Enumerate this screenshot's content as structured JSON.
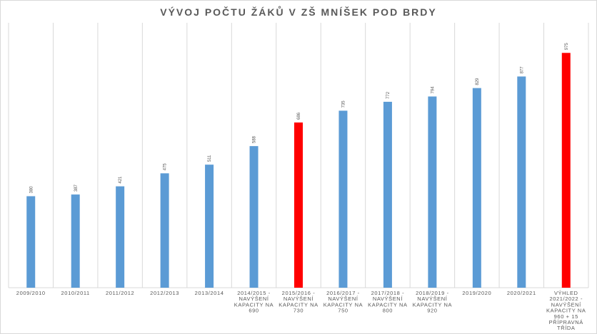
{
  "chart_data": {
    "type": "bar",
    "title": "VÝVOJ POČTU ŽÁKŮ V ZŠ MNÍŠEK POD BRDY",
    "xlabel": "",
    "ylabel": "",
    "ylim": [
      0,
      1100
    ],
    "grid": "vertical",
    "legend": "none",
    "categories": [
      [
        "2009/2010"
      ],
      [
        "2010/2011"
      ],
      [
        "2011/2012"
      ],
      [
        "2012/2013"
      ],
      [
        "2013/2014"
      ],
      [
        "2014/2015 -",
        "NAVÝŠENÍ",
        "KAPACITY NA",
        "690"
      ],
      [
        "2015/2016 -",
        "NAVÝŠENÍ",
        "KAPACITY NA",
        "730"
      ],
      [
        "2016/2017 -",
        "NAVÝŠENÍ",
        "KAPACITY NA",
        "750"
      ],
      [
        "2017/2018 -",
        "NAVÝŠENÍ",
        "KAPACITY NA",
        "800"
      ],
      [
        "2018/2019 -",
        "NAVÝŠENÍ",
        "KAPACITY NA",
        "920"
      ],
      [
        "2019/2020"
      ],
      [
        "2020/2021"
      ],
      [
        "VÝHLED",
        "2021/2022 -",
        "NAVÝŠENÍ",
        "KAPACITY NA",
        "960 + 15",
        "PŘÍPRAVNÁ",
        "TŘÍDA"
      ]
    ],
    "values": [
      380,
      387,
      421,
      475,
      511,
      588,
      686,
      735,
      772,
      794,
      829,
      877,
      975
    ],
    "data_labels": [
      "380",
      "387",
      "421",
      "475",
      "511",
      "588",
      "686",
      "735",
      "772",
      "794",
      "829",
      "877",
      "975"
    ],
    "bar_colors": [
      "#5b9bd5",
      "#5b9bd5",
      "#5b9bd5",
      "#5b9bd5",
      "#5b9bd5",
      "#5b9bd5",
      "#ff0000",
      "#5b9bd5",
      "#5b9bd5",
      "#5b9bd5",
      "#5b9bd5",
      "#5b9bd5",
      "#ff0000"
    ],
    "colors": {
      "default_bar": "#5b9bd5",
      "highlight_bar": "#ff0000",
      "gridline": "#d9d9d9",
      "text": "#595959"
    }
  }
}
